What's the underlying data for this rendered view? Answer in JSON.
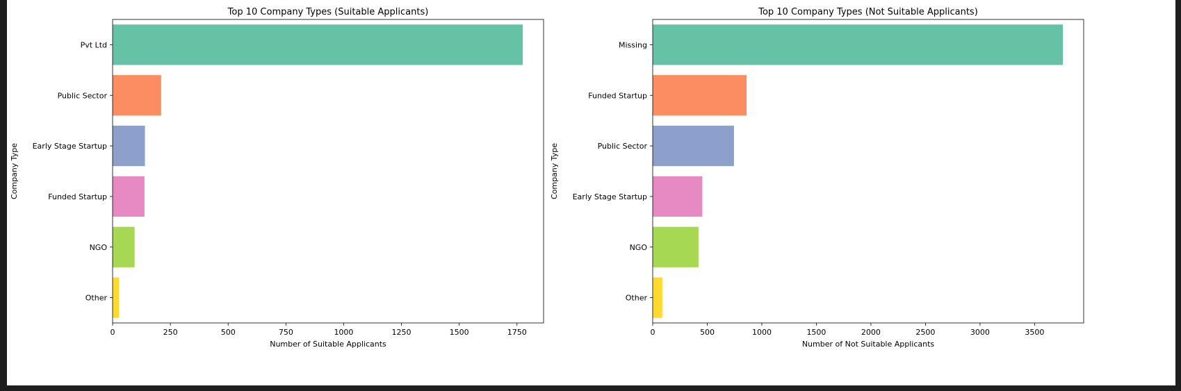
{
  "chart_data": [
    {
      "type": "bar",
      "orientation": "horizontal",
      "title": "Top 10 Company Types (Suitable Applicants)",
      "xlabel": "Number of Suitable Applicants",
      "ylabel": "Company Type",
      "categories": [
        "Pvt Ltd",
        "Public Sector",
        "Early Stage Startup",
        "Funded Startup",
        "NGO",
        "Other"
      ],
      "values": [
        1775,
        210,
        140,
        138,
        95,
        28
      ],
      "colors": [
        "#66c2a5",
        "#fc8d62",
        "#8da0cb",
        "#e78ac3",
        "#a6d854",
        "#ffd92f"
      ],
      "xticks": [
        "0",
        "250",
        "500",
        "750",
        "1000",
        "1250",
        "1500",
        "1750"
      ],
      "xlim": [
        0,
        1865
      ],
      "grid": false
    },
    {
      "type": "bar",
      "orientation": "horizontal",
      "title": "Top 10 Company Types (Not Suitable Applicants)",
      "xlabel": "Number of Not Suitable Applicants",
      "ylabel": "Company Type",
      "categories": [
        "Missing",
        "Funded Startup",
        "Public Sector",
        "Early Stage Startup",
        "NGO",
        "Other"
      ],
      "values": [
        3760,
        860,
        745,
        455,
        420,
        88
      ],
      "colors": [
        "#66c2a5",
        "#fc8d62",
        "#8da0cb",
        "#e78ac3",
        "#a6d854",
        "#ffd92f"
      ],
      "xticks": [
        "0",
        "500",
        "1000",
        "1500",
        "2000",
        "2500",
        "3000",
        "3500"
      ],
      "xlim": [
        0,
        3950
      ],
      "grid": false
    }
  ]
}
